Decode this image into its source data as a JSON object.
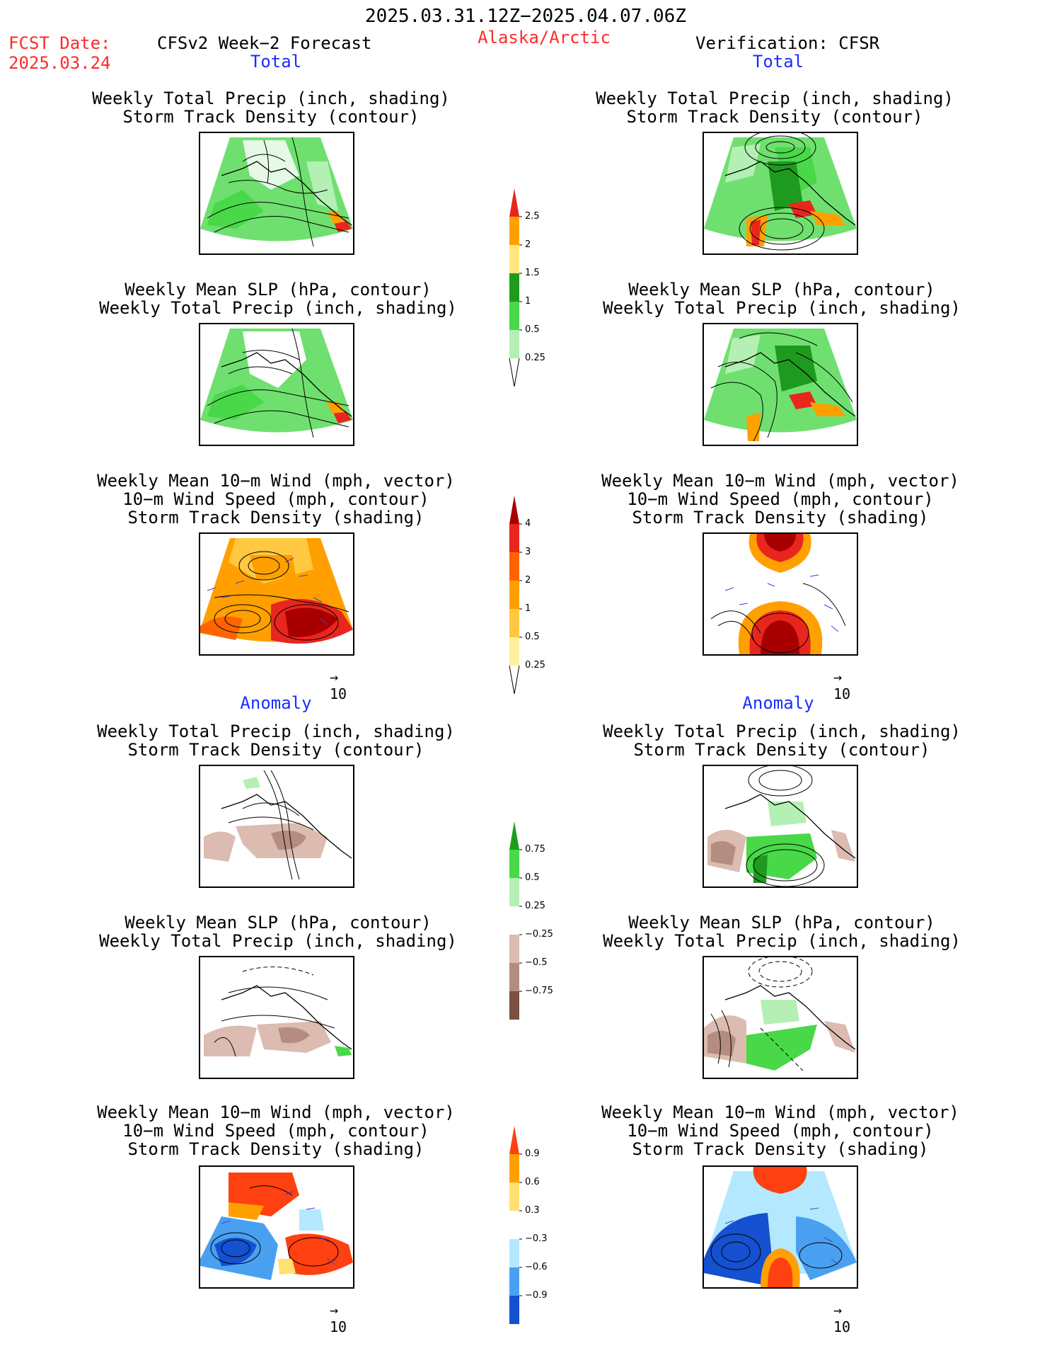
{
  "header": {
    "valid_period": "2025.03.31.12Z−2025.04.07.06Z",
    "fcst_label": "FCST Date:",
    "fcst_date": "2025.03.24",
    "model_title": "CFSv2 Week−2 Forecast",
    "region": "Alaska/Arctic",
    "verification": "Verification: CFSR"
  },
  "sections": {
    "total": "Total",
    "anomaly": "Anomaly"
  },
  "panel_titles": {
    "precip_track": [
      "Weekly Total Precip (inch, shading)",
      "Storm Track Density (contour)"
    ],
    "slp_precip": [
      "Weekly Mean SLP (hPa, contour)",
      "Weekly Total Precip (inch, shading)"
    ],
    "wind_track": [
      "Weekly Mean 10−m Wind (mph, vector)",
      "10−m Wind Speed (mph, contour)",
      "Storm Track Density (shading)"
    ]
  },
  "vector_scale": "10",
  "colorbars": {
    "precip_total": {
      "labels": [
        "2.5",
        "2",
        "1.5",
        "1",
        "0.5",
        "0.25"
      ],
      "colors": [
        "#e8261e",
        "#ffa000",
        "#ffe680",
        "#1e9b1e",
        "#48d848",
        "#b4f0b4"
      ]
    },
    "track_total": {
      "labels": [
        "4",
        "3",
        "2",
        "1",
        "0.5",
        "0.25"
      ],
      "colors": [
        "#a80000",
        "#e8261e",
        "#ff6400",
        "#ffa000",
        "#ffc840",
        "#fff0a0"
      ]
    },
    "precip_anom": {
      "labels": [
        "0.75",
        "0.5",
        "0.25",
        "−0.25",
        "−0.5",
        "−0.75"
      ],
      "colors": [
        "#1e9b1e",
        "#48d848",
        "#b4f0b4",
        "#ffffff",
        "#dcbcb0",
        "#b48c80",
        "#7a5040"
      ]
    },
    "track_anom": {
      "labels": [
        "0.9",
        "0.6",
        "0.3",
        "−0.3",
        "−0.6",
        "−0.9"
      ],
      "colors": [
        "#ff4010",
        "#ffa000",
        "#ffe070",
        "#ffffff",
        "#b4e8ff",
        "#4aa0f0",
        "#1450d0"
      ]
    }
  }
}
